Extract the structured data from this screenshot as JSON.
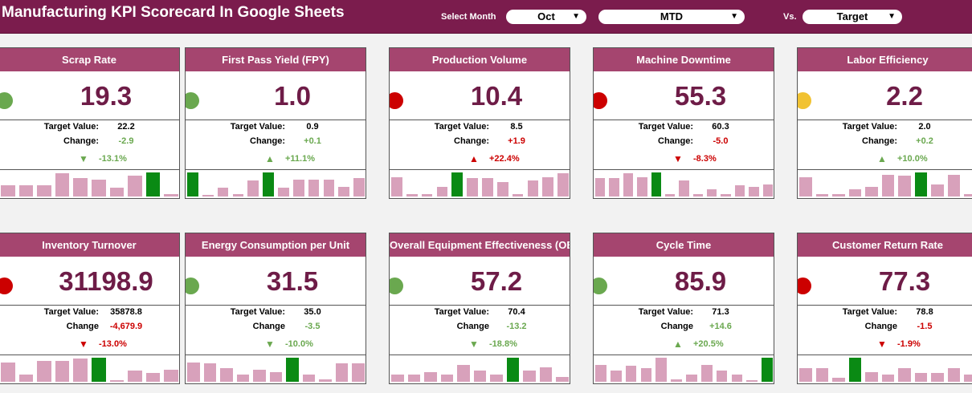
{
  "header": {
    "title": "Manufacturing KPI Scorecard In Google Sheets",
    "select_month_label": "Select Month",
    "month": "Oct",
    "period": "MTD",
    "vs_label": "Vs.",
    "comparison": "Target"
  },
  "labels": {
    "target": "Target Value:",
    "change_colon": "Change:",
    "change_plain": "Change"
  },
  "colors": {
    "good": "#6aa84f",
    "bad": "#cc0000",
    "warn": "#f1c232",
    "accent": "#7b1c4d",
    "card_header": "#a5456f",
    "spark_bar": "#d8a1bb",
    "spark_highlight": "#0a8a14"
  },
  "cards": [
    {
      "title": "Scrap Rate",
      "status": "good",
      "value": "19.3",
      "target": "22.2",
      "change": "-2.9",
      "change_color": "good",
      "arrow": "▼",
      "arrow_color": "good",
      "pct": "-13.1%",
      "pct_color": "good",
      "sparkline": [
        0.45,
        0.45,
        0.45,
        0.95,
        0.75,
        0.7,
        0.35,
        0.85,
        1.0,
        0.1
      ],
      "highlight": 8
    },
    {
      "title": "First Pass Yield (FPY)",
      "status": "good",
      "value": "1.0",
      "target": "0.9",
      "change": "+0.1",
      "change_color": "good",
      "arrow": "▲",
      "arrow_color": "good",
      "pct": "+11.1%",
      "pct_color": "good",
      "sparkline": [
        1.0,
        0.05,
        0.35,
        0.1,
        0.65,
        1.0,
        0.35,
        0.7,
        0.7,
        0.7,
        0.4,
        0.75
      ],
      "highlight_list": [
        0,
        5
      ]
    },
    {
      "title": "Production Volume",
      "status": "bad",
      "value": "10.4",
      "target": "8.5",
      "change": "+1.9",
      "change_color": "bad",
      "arrow": "▲",
      "arrow_color": "bad",
      "pct": "+22.4%",
      "pct_color": "bad",
      "sparkline": [
        0.8,
        0.1,
        0.1,
        0.4,
        1.0,
        0.75,
        0.75,
        0.6,
        0.1,
        0.65,
        0.8,
        0.95
      ],
      "highlight": 4
    },
    {
      "title": "Machine Downtime",
      "status": "bad",
      "value": "55.3",
      "target": "60.3",
      "change": "-5.0",
      "change_color": "bad",
      "arrow": "▼",
      "arrow_color": "bad",
      "pct": "-8.3%",
      "pct_color": "bad",
      "sparkline": [
        0.75,
        0.75,
        0.95,
        0.8,
        1.0,
        0.1,
        0.65,
        0.1,
        0.3,
        0.1,
        0.45,
        0.4,
        0.5
      ],
      "highlight": 4
    },
    {
      "title": "Labor Efficiency",
      "status": "warn",
      "value": "2.2",
      "target": "2.0",
      "change": "+0.2",
      "change_color": "good",
      "arrow": "▲",
      "arrow_color": "good",
      "pct": "+10.0%",
      "pct_color": "good",
      "sparkline": [
        0.8,
        0.1,
        0.1,
        0.3,
        0.4,
        0.9,
        0.85,
        1.0,
        0.5,
        0.9,
        0.1
      ],
      "highlight": 7
    },
    {
      "title": "Inventory Turnover",
      "status": "bad",
      "value": "31198.9",
      "target": "35878.8",
      "change": "-4,679.9",
      "change_color": "bad",
      "arrow": "▼",
      "arrow_color": "bad",
      "pct": "-13.0%",
      "pct_color": "bad",
      "sparkline": [
        0.8,
        0.3,
        0.85,
        0.85,
        0.95,
        1.0,
        0.05,
        0.45,
        0.35,
        0.5
      ],
      "highlight": 5
    },
    {
      "title": "Energy Consumption per Unit",
      "status": "good",
      "value": "31.5",
      "target": "35.0",
      "change": "-3.5",
      "change_color": "good",
      "arrow": "▼",
      "arrow_color": "good",
      "pct": "-10.0%",
      "pct_color": "good",
      "sparkline": [
        0.8,
        0.75,
        0.55,
        0.3,
        0.5,
        0.4,
        1.0,
        0.3,
        0.1,
        0.75,
        0.75
      ],
      "highlight": 6
    },
    {
      "title": "Overall Equipment Effectiveness (OEE)",
      "status": "good",
      "value": "57.2",
      "target": "70.4",
      "change": "-13.2",
      "change_color": "good",
      "arrow": "▼",
      "arrow_color": "good",
      "pct": "-18.8%",
      "pct_color": "good",
      "sparkline": [
        0.3,
        0.3,
        0.4,
        0.3,
        0.7,
        0.45,
        0.3,
        1.0,
        0.45,
        0.6,
        0.2
      ],
      "highlight": 7
    },
    {
      "title": "Cycle Time",
      "status": "good",
      "value": "85.9",
      "target": "71.3",
      "change": "+14.6",
      "change_color": "good",
      "arrow": "▲",
      "arrow_color": "good",
      "pct": "+20.5%",
      "pct_color": "good",
      "sparkline": [
        0.7,
        0.45,
        0.65,
        0.55,
        1.0,
        0.1,
        0.3,
        0.7,
        0.45,
        0.3,
        0.05,
        1.0
      ],
      "highlight": 11
    },
    {
      "title": "Customer Return Rate",
      "status": "bad",
      "value": "77.3",
      "target": "78.8",
      "change": "-1.5",
      "change_color": "bad",
      "arrow": "▼",
      "arrow_color": "bad",
      "pct": "-1.9%",
      "pct_color": "bad",
      "sparkline": [
        0.55,
        0.55,
        0.15,
        1.0,
        0.4,
        0.3,
        0.55,
        0.35,
        0.35,
        0.55,
        0.3
      ],
      "highlight": 3
    }
  ]
}
